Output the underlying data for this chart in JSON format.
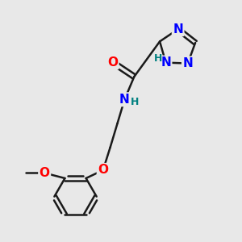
{
  "bg_color": "#e8e8e8",
  "bond_color": "#1a1a1a",
  "N_color": "#0000ff",
  "O_color": "#ff0000",
  "H_color": "#008080",
  "line_width": 1.8,
  "font_size_atom": 11,
  "font_size_H": 9,
  "xlim": [
    0,
    10
  ],
  "ylim": [
    0,
    10
  ]
}
